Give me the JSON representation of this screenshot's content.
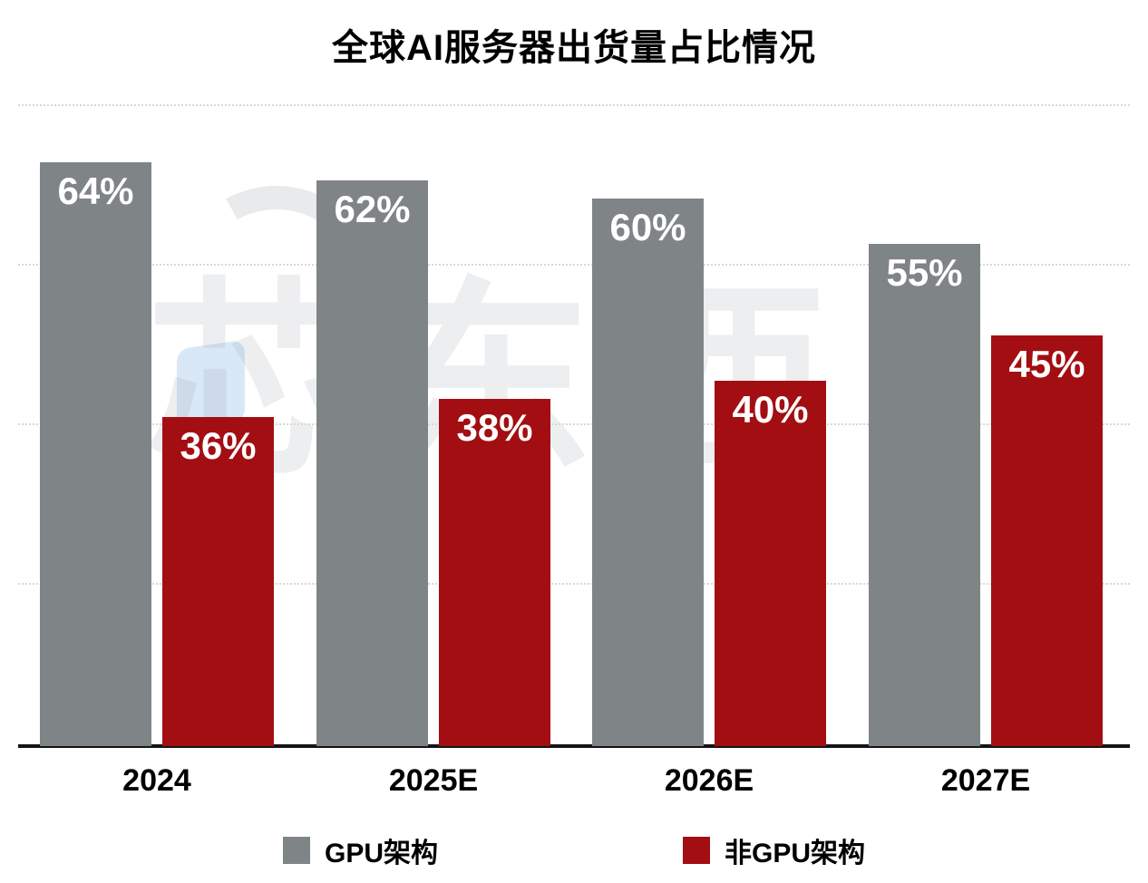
{
  "chart_data": {
    "type": "bar",
    "title": "全球AI服务器出货量占比情况",
    "categories": [
      "2024",
      "2025E",
      "2026E",
      "2027E"
    ],
    "series": [
      {
        "name": "GPU架构",
        "color": "#7f8486",
        "values": [
          64,
          62,
          60,
          55
        ]
      },
      {
        "name": "非GPU架构",
        "color": "#a30e13",
        "values": [
          36,
          38,
          40,
          45
        ]
      }
    ],
    "value_suffix": "%",
    "ylabel": "",
    "xlabel": "",
    "ylim": [
      0,
      70
    ],
    "grid": true,
    "legend_position": "bottom"
  },
  "watermark": {
    "text": "芯东西"
  }
}
